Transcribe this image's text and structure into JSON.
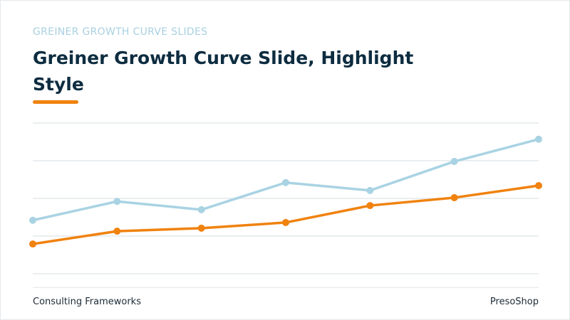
{
  "eyebrow": "GREINER GROWTH CURVE SLIDES",
  "footer": {
    "left": "Consulting Frameworks",
    "right": "PresoShop"
  },
  "chart_data": {
    "type": "line",
    "title": "Greiner Growth Curve Slide, Highlight Style",
    "categories": [
      null,
      null,
      null,
      null,
      null,
      null,
      null
    ],
    "series": [
      {
        "color": "#a9d3e3",
        "values": [
          1.42,
          1.92,
          1.7,
          2.42,
          2.21,
          2.98,
          3.57
        ]
      },
      {
        "color": "#f0820f",
        "values": [
          0.79,
          1.13,
          1.21,
          1.36,
          1.81,
          2.02,
          2.34
        ]
      }
    ],
    "ylim": [
      0,
      4
    ],
    "yticks": [
      0,
      1,
      2,
      3,
      4
    ],
    "grid": true
  }
}
